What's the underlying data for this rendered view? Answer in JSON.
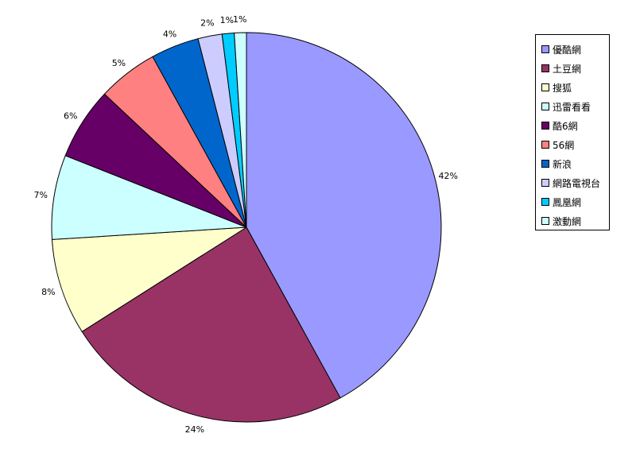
{
  "chart_data": {
    "type": "pie",
    "categories": [
      "優酷網",
      "土豆網",
      "搜狐",
      "迅雷看看",
      "酷6網",
      "56網",
      "新浪",
      "網路電視台",
      "鳳凰網",
      "激動網"
    ],
    "values": [
      42,
      24,
      8,
      7,
      6,
      5,
      4,
      2,
      1,
      1
    ],
    "value_labels": [
      "42%",
      "24%",
      "8%",
      "7%",
      "6%",
      "5%",
      "4%",
      "2%",
      "1%",
      "1%"
    ],
    "colors": [
      "#9999FF",
      "#993366",
      "#FFFFCC",
      "#CCFFFF",
      "#660066",
      "#FF8080",
      "#0066CC",
      "#CCCCFF",
      "#00CCFF",
      "#CCFFFF"
    ],
    "legend_position": "right",
    "title": ""
  }
}
